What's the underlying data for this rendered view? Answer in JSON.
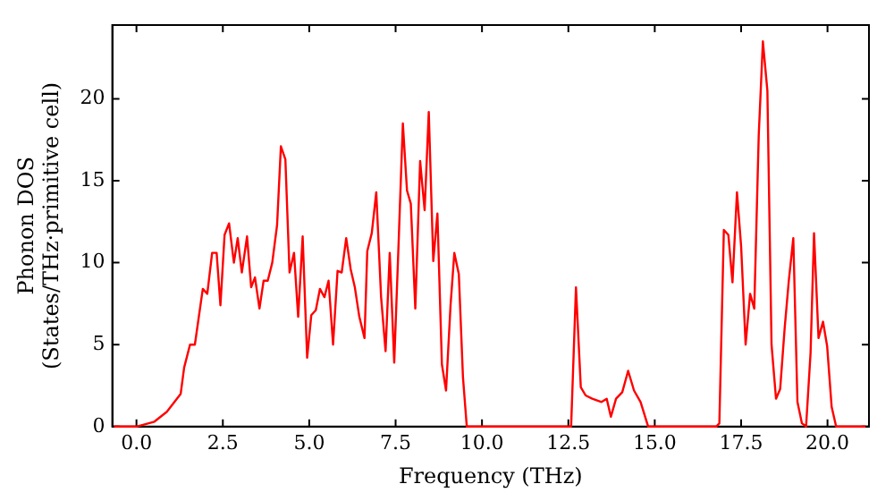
{
  "chart_data": {
    "type": "line",
    "xlabel": "Frequency (THz)",
    "ylabel": "Phonon DOS\n(States/THz·primitive cell)",
    "x": [
      -0.65,
      0,
      0.52,
      0.88,
      1.28,
      1.38,
      1.55,
      1.69,
      1.92,
      2.05,
      2.19,
      2.32,
      2.43,
      2.55,
      2.68,
      2.82,
      2.93,
      3.05,
      3.2,
      3.32,
      3.43,
      3.56,
      3.68,
      3.8,
      3.93,
      4.07,
      4.18,
      4.31,
      4.43,
      4.56,
      4.68,
      4.81,
      4.94,
      5.06,
      5.19,
      5.31,
      5.44,
      5.56,
      5.69,
      5.82,
      5.94,
      6.07,
      6.2,
      6.32,
      6.45,
      6.6,
      6.68,
      6.81,
      6.94,
      7.08,
      7.21,
      7.33,
      7.46,
      7.58,
      7.71,
      7.83,
      7.94,
      8.07,
      8.21,
      8.34,
      8.46,
      8.59,
      8.71,
      8.84,
      8.96,
      9.09,
      9.2,
      9.33,
      9.45,
      9.56,
      12.58,
      12.72,
      12.86,
      13.0,
      13.19,
      13.46,
      13.61,
      13.73,
      13.88,
      14.06,
      14.23,
      14.4,
      14.59,
      14.81,
      16.78,
      16.87,
      17.0,
      17.13,
      17.25,
      17.38,
      17.5,
      17.63,
      17.76,
      17.88,
      18.01,
      18.13,
      18.26,
      18.38,
      18.51,
      18.63,
      18.76,
      18.88,
      19.01,
      19.13,
      19.26,
      19.38,
      19.51,
      19.61,
      19.74,
      19.87,
      19.99,
      20.12,
      20.25,
      21.1
    ],
    "values": [
      0,
      0,
      0.3,
      0.9,
      2.0,
      3.6,
      5.0,
      5.0,
      8.4,
      8.1,
      10.6,
      10.6,
      7.4,
      11.7,
      12.4,
      10.0,
      11.5,
      9.4,
      11.6,
      8.5,
      9.1,
      7.2,
      8.9,
      8.9,
      10.0,
      12.3,
      17.1,
      16.3,
      9.4,
      10.6,
      6.7,
      11.6,
      4.2,
      6.8,
      7.1,
      8.4,
      7.9,
      8.9,
      5.0,
      9.5,
      9.4,
      11.5,
      9.6,
      8.5,
      6.7,
      5.4,
      10.7,
      11.8,
      14.3,
      7.9,
      4.6,
      10.6,
      3.9,
      10.8,
      18.5,
      14.4,
      13.6,
      7.2,
      16.2,
      13.2,
      19.2,
      10.1,
      13.0,
      3.8,
      2.2,
      7.4,
      10.6,
      9.3,
      3.0,
      0,
      0,
      8.5,
      2.4,
      1.9,
      1.7,
      1.5,
      1.7,
      0.6,
      1.7,
      2.1,
      3.4,
      2.2,
      1.5,
      0,
      0,
      0.2,
      12.0,
      11.7,
      8.8,
      14.3,
      11.0,
      5.0,
      8.1,
      7.2,
      17.8,
      23.5,
      20.5,
      5.0,
      1.7,
      2.3,
      6.0,
      8.9,
      11.5,
      1.5,
      0.2,
      0,
      4.5,
      11.8,
      5.4,
      6.4,
      4.9,
      1.2,
      0,
      0
    ],
    "color": "#ff0000",
    "xlim": [
      -0.7,
      21.2
    ],
    "xticks": [
      {
        "value": 0,
        "label": "0.0"
      },
      {
        "value": 2.5,
        "label": "2.5"
      },
      {
        "value": 5,
        "label": "5.0"
      },
      {
        "value": 7.5,
        "label": "7.5"
      },
      {
        "value": 10,
        "label": "10.0"
      },
      {
        "value": 12.5,
        "label": "12.5"
      },
      {
        "value": 15,
        "label": "15.0"
      },
      {
        "value": 17.5,
        "label": "17.5"
      },
      {
        "value": 20,
        "label": "20.0"
      }
    ],
    "ylim": [
      0,
      24.5
    ],
    "yticks": [
      0,
      5,
      10,
      15,
      20
    ],
    "grid": false,
    "legend": false,
    "marker": "none",
    "line_style": "solid"
  }
}
